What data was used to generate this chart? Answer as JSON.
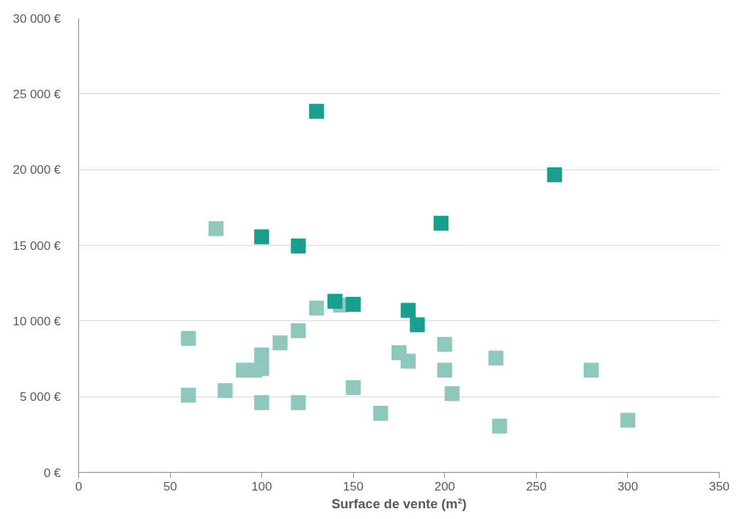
{
  "chart_data": {
    "type": "scatter",
    "xlabel": "Surface de vente (m²)",
    "marker": "square",
    "grid": "y",
    "xlim": [
      0,
      350
    ],
    "xticks": [
      0,
      50,
      100,
      150,
      200,
      250,
      300,
      350
    ],
    "ylim": [
      0,
      30000
    ],
    "yticks": [
      {
        "value": 0,
        "label": "0 €"
      },
      {
        "value": 5000,
        "label": "5 000 €"
      },
      {
        "value": 10000,
        "label": "10 000 €"
      },
      {
        "value": 15000,
        "label": "15 000 €"
      },
      {
        "value": 20000,
        "label": "20 000 €"
      },
      {
        "value": 25000,
        "label": "25 000 €"
      },
      {
        "value": 30000,
        "label": "30 000 €"
      }
    ],
    "series": [
      {
        "color": "#8fc7bd",
        "x": [
          75,
          60,
          60,
          80,
          90,
          96,
          100,
          100,
          100,
          110,
          120,
          120,
          130,
          143,
          150,
          165,
          175,
          180,
          200,
          200,
          204,
          228,
          230,
          280,
          300
        ],
        "values": [
          16100,
          8850,
          5100,
          5400,
          6750,
          6750,
          7750,
          6850,
          4600,
          8550,
          9350,
          4600,
          10850,
          11050,
          5600,
          3900,
          7900,
          7350,
          8450,
          6750,
          5200,
          7550,
          3050,
          6750,
          3450
        ]
      },
      {
        "color": "#1a9e8f",
        "x": [
          130,
          260,
          198,
          100,
          120,
          140,
          150,
          180,
          185
        ],
        "values": [
          23850,
          19650,
          16450,
          15550,
          14950,
          11300,
          11100,
          10700,
          9750
        ]
      }
    ]
  }
}
